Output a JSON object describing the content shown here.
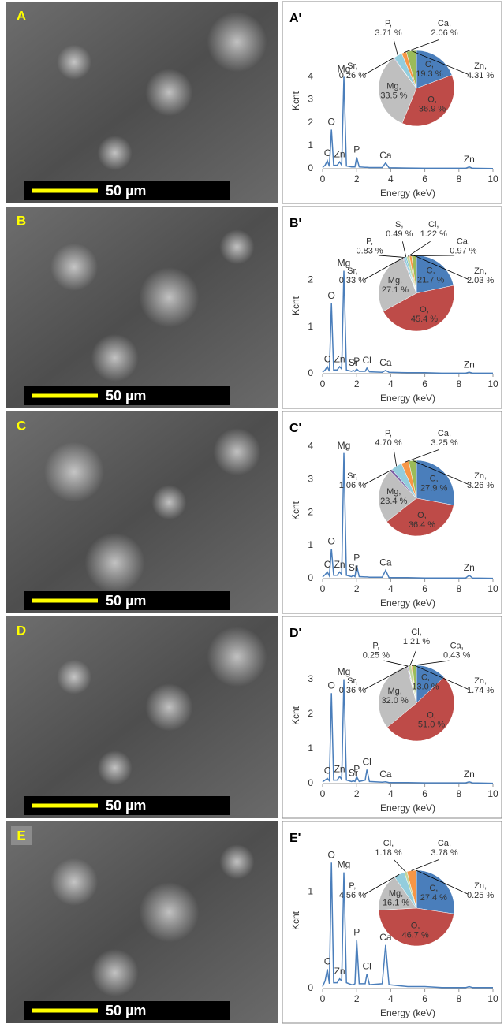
{
  "images": [
    {
      "label": "A",
      "scale_bar": "50 µm"
    },
    {
      "label": "B",
      "scale_bar": "50 µm"
    },
    {
      "label": "C",
      "scale_bar": "50 µm"
    },
    {
      "label": "D",
      "scale_bar": "50 µm"
    },
    {
      "label": "E",
      "scale_bar": "50 µm"
    }
  ],
  "chart_data": [
    {
      "type": "line",
      "label": "A'",
      "x_label": "Energy (keV)",
      "y_label": "Kcnt",
      "color": "#4a7ebb",
      "x": [
        0,
        0.15,
        0.28,
        0.4,
        0.52,
        0.65,
        0.85,
        1.0,
        1.12,
        1.25,
        1.4,
        1.7,
        1.8,
        1.9,
        2.0,
        2.15,
        2.5,
        2.6,
        2.75,
        3.5,
        3.7,
        3.9,
        5,
        6,
        7,
        8.4,
        8.6,
        8.8,
        10
      ],
      "values": [
        0.05,
        0.15,
        0.35,
        0.1,
        1.7,
        0.15,
        0.15,
        0.3,
        0.15,
        4.0,
        0.12,
        0.08,
        0.08,
        0.08,
        0.5,
        0.08,
        0.06,
        0.06,
        0.05,
        0.05,
        0.25,
        0.04,
        0.03,
        0.02,
        0.02,
        0.02,
        0.08,
        0.02,
        0.01
      ],
      "xlim": [
        0,
        10
      ],
      "xticks": [
        0,
        2,
        4,
        6,
        8,
        10
      ],
      "ylim": [
        0,
        5.9
      ],
      "yticks": [
        0,
        1,
        2,
        3,
        4
      ],
      "annotations": [
        {
          "text": "C",
          "x": 0.28,
          "y": 0.35
        },
        {
          "text": "O",
          "x": 0.52,
          "y": 1.7
        },
        {
          "text": "Zn",
          "x": 1.0,
          "y": 0.3
        },
        {
          "text": "Mg",
          "x": 1.25,
          "y": 4.0
        },
        {
          "text": "P",
          "x": 2.0,
          "y": 0.5
        },
        {
          "text": "Ca",
          "x": 3.7,
          "y": 0.25
        },
        {
          "text": "Zn",
          "x": 8.6,
          "y": 0.08
        }
      ]
    },
    {
      "type": "pie",
      "categories": [
        "C,",
        "O,",
        "Mg,",
        "Sr,",
        "P,",
        "Ca,",
        "Zn,"
      ],
      "values": [
        19.3,
        36.9,
        33.5,
        0.26,
        3.71,
        2.06,
        4.31
      ],
      "value_labels": [
        "19.3 %",
        "36.9 %",
        "33.5 %",
        "0.26 %",
        "3.71 %",
        "2.06 %",
        "4.31 %"
      ],
      "colors": [
        "#4a7ebb",
        "#be4b48",
        "#bfbfbf",
        "#7f62a5",
        "#93cddd",
        "#f79646",
        "#9bbb59"
      ]
    },
    {
      "type": "line",
      "label": "B'",
      "x_label": "Energy (keV)",
      "y_label": "Kcnt",
      "color": "#4a7ebb",
      "x": [
        0,
        0.15,
        0.28,
        0.4,
        0.52,
        0.65,
        0.85,
        1.0,
        1.12,
        1.25,
        1.4,
        1.7,
        1.8,
        1.9,
        2.0,
        2.15,
        2.5,
        2.6,
        2.75,
        3.5,
        3.7,
        3.9,
        5,
        6,
        7,
        8.4,
        8.6,
        8.8,
        10
      ],
      "values": [
        0.03,
        0.08,
        0.15,
        0.05,
        1.5,
        0.08,
        0.08,
        0.15,
        0.1,
        2.2,
        0.08,
        0.05,
        0.07,
        0.05,
        0.1,
        0.05,
        0.05,
        0.12,
        0.04,
        0.03,
        0.07,
        0.03,
        0.02,
        0.02,
        0.01,
        0.01,
        0.03,
        0.01,
        0.01
      ],
      "xlim": [
        0,
        10
      ],
      "xticks": [
        0,
        2,
        4,
        6,
        8,
        10
      ],
      "ylim": [
        0,
        2.9
      ],
      "yticks": [
        0,
        1,
        2
      ],
      "annotations": [
        {
          "text": "C",
          "x": 0.28,
          "y": 0.15
        },
        {
          "text": "O",
          "x": 0.52,
          "y": 1.5
        },
        {
          "text": "Zn",
          "x": 1.0,
          "y": 0.15
        },
        {
          "text": "Mg",
          "x": 1.25,
          "y": 2.2
        },
        {
          "text": "Sr",
          "x": 1.8,
          "y": 0.07
        },
        {
          "text": "P",
          "x": 2.0,
          "y": 0.1
        },
        {
          "text": "Cl",
          "x": 2.6,
          "y": 0.12
        },
        {
          "text": "Ca",
          "x": 3.7,
          "y": 0.07
        },
        {
          "text": "Zn",
          "x": 8.6,
          "y": 0.03
        }
      ]
    },
    {
      "type": "pie",
      "categories": [
        "C,",
        "O,",
        "Mg,",
        "Sr,",
        "P,",
        "S,",
        "Cl,",
        "Ca,",
        "Zn,"
      ],
      "values": [
        21.7,
        45.4,
        27.1,
        0.33,
        0.83,
        0.49,
        1.22,
        0.97,
        2.03
      ],
      "value_labels": [
        "21.7 %",
        "45.4 %",
        "27.1 %",
        "0.33 %",
        "0.83 %",
        "0.49 %",
        "1.22 %",
        "0.97 %",
        "2.03 %"
      ],
      "colors": [
        "#4a7ebb",
        "#be4b48",
        "#bfbfbf",
        "#7f62a5",
        "#93cddd",
        "#4bacc6",
        "#c3d69b",
        "#f79646",
        "#9bbb59"
      ]
    },
    {
      "type": "line",
      "label": "C'",
      "x_label": "Energy (keV)",
      "y_label": "Kcnt",
      "color": "#4a7ebb",
      "x": [
        0,
        0.15,
        0.28,
        0.4,
        0.52,
        0.65,
        0.85,
        1.0,
        1.12,
        1.25,
        1.4,
        1.7,
        1.8,
        1.9,
        2.0,
        2.15,
        2.5,
        2.6,
        2.75,
        3.5,
        3.7,
        3.9,
        5,
        6,
        7,
        8.4,
        8.6,
        8.8,
        10
      ],
      "values": [
        0.05,
        0.12,
        0.2,
        0.08,
        0.9,
        0.1,
        0.1,
        0.2,
        0.12,
        3.8,
        0.1,
        0.06,
        0.1,
        0.06,
        0.4,
        0.06,
        0.05,
        0.05,
        0.04,
        0.04,
        0.25,
        0.03,
        0.03,
        0.02,
        0.02,
        0.02,
        0.1,
        0.02,
        0.01
      ],
      "xlim": [
        0,
        10
      ],
      "xticks": [
        0,
        2,
        4,
        6,
        8,
        10
      ],
      "ylim": [
        0,
        4.1
      ],
      "yticks": [
        0,
        1,
        2,
        3,
        4
      ],
      "annotations": [
        {
          "text": "C",
          "x": 0.28,
          "y": 0.2
        },
        {
          "text": "O",
          "x": 0.52,
          "y": 0.9
        },
        {
          "text": "Zn",
          "x": 1.0,
          "y": 0.2
        },
        {
          "text": "Mg",
          "x": 1.25,
          "y": 3.8
        },
        {
          "text": "Sr",
          "x": 1.8,
          "y": 0.1
        },
        {
          "text": "P",
          "x": 2.0,
          "y": 0.4
        },
        {
          "text": "Ca",
          "x": 3.7,
          "y": 0.25
        },
        {
          "text": "Zn",
          "x": 8.6,
          "y": 0.1
        }
      ]
    },
    {
      "type": "pie",
      "categories": [
        "C,",
        "O,",
        "Mg,",
        "Sr,",
        "P,",
        "Ca,",
        "Zn,"
      ],
      "values": [
        27.9,
        36.4,
        23.4,
        1.06,
        4.7,
        3.25,
        3.26
      ],
      "value_labels": [
        "27.9 %",
        "36.4 %",
        "23.4 %",
        "1.06 %",
        "4.70 %",
        "3.25 %",
        "3.26 %"
      ],
      "colors": [
        "#4a7ebb",
        "#be4b48",
        "#bfbfbf",
        "#7f62a5",
        "#93cddd",
        "#f79646",
        "#9bbb59"
      ]
    },
    {
      "type": "line",
      "label": "D'",
      "x_label": "Energy (keV)",
      "y_label": "Kcnt",
      "color": "#4a7ebb",
      "x": [
        0,
        0.15,
        0.28,
        0.4,
        0.52,
        0.65,
        0.85,
        1.0,
        1.12,
        1.25,
        1.4,
        1.7,
        1.8,
        1.9,
        2.0,
        2.15,
        2.5,
        2.6,
        2.75,
        3.5,
        3.7,
        3.9,
        5,
        6,
        7,
        8.4,
        8.6,
        8.8,
        10
      ],
      "values": [
        0.05,
        0.1,
        0.15,
        0.08,
        2.6,
        0.1,
        0.1,
        0.2,
        0.12,
        3.0,
        0.1,
        0.06,
        0.08,
        0.06,
        0.2,
        0.06,
        0.1,
        0.4,
        0.06,
        0.04,
        0.05,
        0.03,
        0.03,
        0.02,
        0.02,
        0.02,
        0.05,
        0.02,
        0.01
      ],
      "xlim": [
        0,
        10
      ],
      "xticks": [
        0,
        2,
        4,
        6,
        8,
        10
      ],
      "ylim": [
        0,
        3.9
      ],
      "yticks": [
        0,
        1,
        2,
        3
      ],
      "annotations": [
        {
          "text": "C",
          "x": 0.28,
          "y": 0.15
        },
        {
          "text": "O",
          "x": 0.52,
          "y": 2.6
        },
        {
          "text": "Zn",
          "x": 1.0,
          "y": 0.2
        },
        {
          "text": "Mg",
          "x": 1.25,
          "y": 3.0
        },
        {
          "text": "Sr",
          "x": 1.8,
          "y": 0.08
        },
        {
          "text": "P",
          "x": 2.0,
          "y": 0.2
        },
        {
          "text": "Cl",
          "x": 2.6,
          "y": 0.4
        },
        {
          "text": "Ca",
          "x": 3.7,
          "y": 0.05
        },
        {
          "text": "Zn",
          "x": 8.6,
          "y": 0.05
        }
      ]
    },
    {
      "type": "pie",
      "categories": [
        "C,",
        "O,",
        "Mg,",
        "Sr,",
        "P,",
        "Cl,",
        "Ca,",
        "Zn,"
      ],
      "values": [
        13.0,
        51.0,
        32.0,
        0.36,
        0.25,
        1.21,
        0.43,
        1.74
      ],
      "value_labels": [
        "13.0 %",
        "51.0 %",
        "32.0 %",
        "0.36 %",
        "0.25 %",
        "1.21 %",
        "0.43 %",
        "1.74 %"
      ],
      "colors": [
        "#4a7ebb",
        "#be4b48",
        "#bfbfbf",
        "#7f62a5",
        "#93cddd",
        "#c3d69b",
        "#f79646",
        "#9bbb59"
      ]
    },
    {
      "type": "line",
      "label": "E'",
      "x_label": "Energy (keV)",
      "y_label": "Kcnt",
      "color": "#4a7ebb",
      "x": [
        0,
        0.15,
        0.28,
        0.4,
        0.52,
        0.65,
        0.85,
        1.0,
        1.12,
        1.25,
        1.4,
        1.7,
        1.8,
        1.9,
        2.0,
        2.15,
        2.5,
        2.6,
        2.75,
        3.5,
        3.7,
        3.9,
        5,
        6,
        7,
        8.4,
        8.6,
        8.8,
        10
      ],
      "values": [
        0.02,
        0.08,
        0.2,
        0.05,
        1.3,
        0.06,
        0.06,
        0.1,
        0.08,
        1.2,
        0.06,
        0.04,
        0.04,
        0.05,
        0.5,
        0.05,
        0.05,
        0.15,
        0.04,
        0.05,
        0.45,
        0.04,
        0.02,
        0.02,
        0.01,
        0.01,
        0.02,
        0.01,
        0.01
      ],
      "xlim": [
        0,
        10
      ],
      "xticks": [
        0,
        2,
        4,
        6,
        8,
        10
      ],
      "ylim": [
        0,
        1.4
      ],
      "yticks": [
        0,
        1
      ],
      "annotations": [
        {
          "text": "C",
          "x": 0.28,
          "y": 0.2
        },
        {
          "text": "O",
          "x": 0.52,
          "y": 1.3
        },
        {
          "text": "Zn",
          "x": 1.0,
          "y": 0.1
        },
        {
          "text": "Mg",
          "x": 1.25,
          "y": 1.2
        },
        {
          "text": "P",
          "x": 2.0,
          "y": 0.5
        },
        {
          "text": "Cl",
          "x": 2.6,
          "y": 0.15
        },
        {
          "text": "Ca",
          "x": 3.7,
          "y": 0.45
        }
      ]
    },
    {
      "type": "pie",
      "categories": [
        "C,",
        "O,",
        "Mg,",
        "P,",
        "Cl,",
        "Ca,",
        "Zn,"
      ],
      "values": [
        27.4,
        46.7,
        16.1,
        4.56,
        1.18,
        3.78,
        0.25
      ],
      "value_labels": [
        "27.4 %",
        "46.7 %",
        "16.1 %",
        "4.56 %",
        "1.18 %",
        "3.78 %",
        "0.25 %"
      ],
      "colors": [
        "#4a7ebb",
        "#be4b48",
        "#bfbfbf",
        "#93cddd",
        "#c3d69b",
        "#f79646",
        "#9bbb59"
      ]
    }
  ]
}
